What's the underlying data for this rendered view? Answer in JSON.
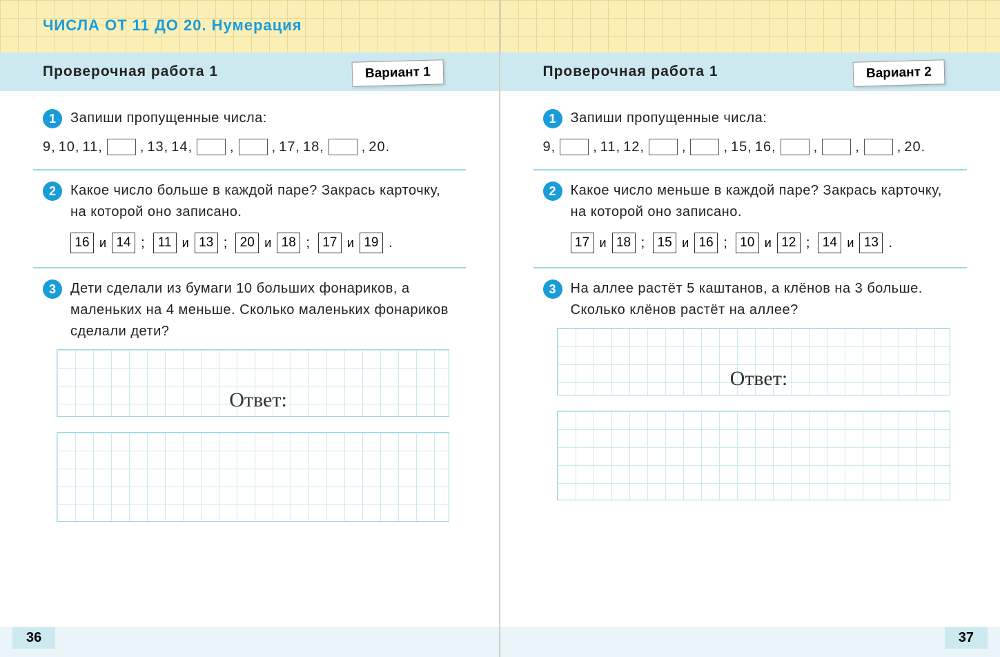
{
  "chapter_title": "ЧИСЛА ОТ 11 ДО 20. Нумерация",
  "colors": {
    "accent": "#1a9cd8",
    "header_bg": "#cde9f0",
    "grid_line": "#cfe8ef",
    "top_bg": "#fbefb8",
    "top_grid": "#e8d890"
  },
  "left": {
    "work_title": "Проверочная работа 1",
    "variant": "Вариант 1",
    "page_number": "36",
    "task1": {
      "num": "1",
      "text": "Запиши пропущенные числа:",
      "sequence": [
        "9,",
        "10,",
        "11,",
        "[]",
        ",",
        "13,",
        "14,",
        "[]",
        ",",
        "[]",
        ",",
        "17,",
        "18,",
        "[]",
        ",",
        "20."
      ]
    },
    "task2": {
      "num": "2",
      "text": "Какое число больше в каждой паре? Закрась карточку, на которой оно записано.",
      "pairs": [
        [
          "16",
          "14"
        ],
        [
          "11",
          "13"
        ],
        [
          "20",
          "18"
        ],
        [
          "17",
          "19"
        ]
      ],
      "conj": "и"
    },
    "task3": {
      "num": "3",
      "text": "Дети сделали из бумаги 10 больших фонари­ков, а маленьких на 4 меньше. Сколько маленьких фонариков сделали дети?",
      "answer_label": "Ответ:"
    }
  },
  "right": {
    "work_title": "Проверочная работа 1",
    "variant": "Вариант 2",
    "page_number": "37",
    "task1": {
      "num": "1",
      "text": "Запиши пропущенные числа:",
      "sequence": [
        "9,",
        "[]",
        ",",
        "11,",
        "12,",
        "[]",
        ",",
        "[]",
        ",",
        "15,",
        "16,",
        "[]",
        ",",
        "[]",
        ",",
        "[]",
        ",",
        "20."
      ]
    },
    "task2": {
      "num": "2",
      "text": "Какое число меньше в каждой паре? Закрась карточку, на которой оно записано.",
      "pairs": [
        [
          "17",
          "18"
        ],
        [
          "15",
          "16"
        ],
        [
          "10",
          "12"
        ],
        [
          "14",
          "13"
        ]
      ],
      "conj": "и"
    },
    "task3": {
      "num": "3",
      "text": "На аллее растёт 5 каштанов, а клёнов на 3 больше. Сколько клёнов растёт на аллее?",
      "answer_label": "Ответ:"
    }
  }
}
